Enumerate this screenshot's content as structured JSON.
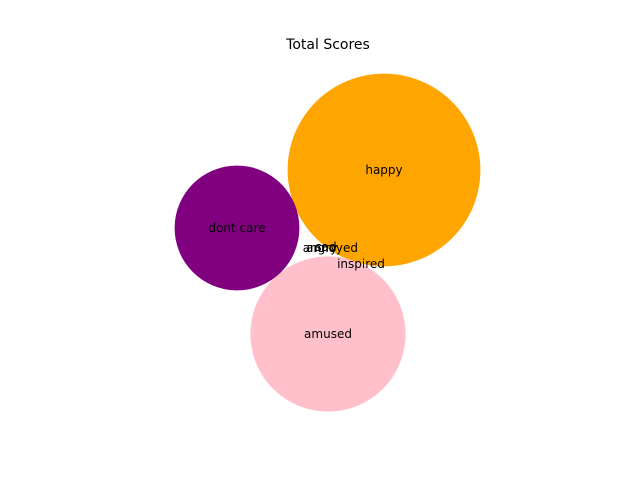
{
  "chart_data": {
    "type": "bubble",
    "title": "Total Scores",
    "bubbles": [
      {
        "label": "happy",
        "value": 37,
        "color": "#FFA500"
      },
      {
        "label": "amused",
        "value": 24,
        "color": "#FFC0CB"
      },
      {
        "label": "dont care",
        "value": 15.5,
        "color": "#800080"
      },
      {
        "label": "angry",
        "value": 0,
        "color": "#ff0000"
      },
      {
        "label": "annoyed",
        "value": 0,
        "color": "#ffff00"
      },
      {
        "label": "sad",
        "value": 0,
        "color": "#0000ff"
      },
      {
        "label": "inspired",
        "value": 0,
        "color": "#008000"
      }
    ]
  }
}
